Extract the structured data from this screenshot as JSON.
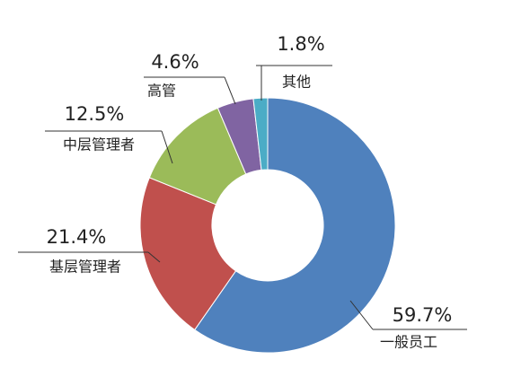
{
  "chart_data": {
    "type": "donut",
    "categories": [
      "一般员工",
      "基层管理者",
      "中层管理者",
      "高管",
      "其他"
    ],
    "values": [
      59.7,
      21.4,
      12.5,
      4.6,
      1.8
    ],
    "value_labels": [
      "59.7%",
      "21.4%",
      "12.5%",
      "4.6%",
      "1.8%"
    ],
    "colors": [
      "#4f81bd",
      "#c0504d",
      "#9bbb59",
      "#8064a2",
      "#4bacc6"
    ]
  }
}
